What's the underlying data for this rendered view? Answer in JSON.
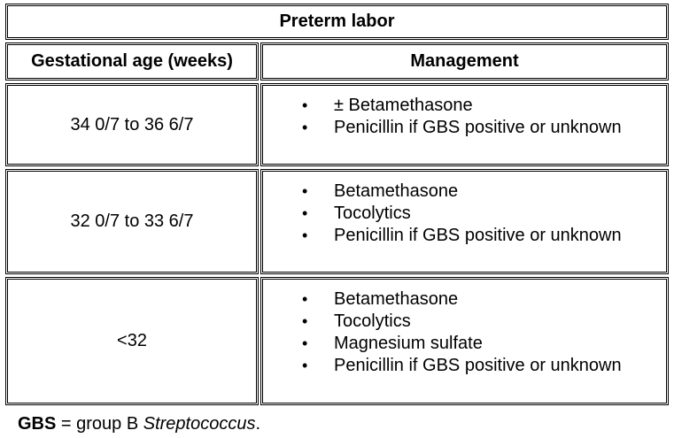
{
  "table": {
    "title": "Preterm labor",
    "headers": {
      "age": "Gestational age (weeks)",
      "management": "Management"
    },
    "rows": [
      {
        "age": "34 0/7 to 36 6/7",
        "items": [
          "± Betamethasone",
          "Penicillin if GBS positive or unknown"
        ]
      },
      {
        "age": "32 0/7 to 33 6/7",
        "items": [
          "Betamethasone",
          "Tocolytics",
          "Penicillin if GBS positive or unknown"
        ]
      },
      {
        "age": "<32",
        "items": [
          "Betamethasone",
          "Tocolytics",
          "Magnesium sulfate",
          "Penicillin if GBS positive or unknown"
        ]
      }
    ],
    "bullet_char": "•"
  },
  "footnote": {
    "abbr": "GBS",
    "text_before": " = group B ",
    "species": "Streptococcus",
    "text_after": "."
  }
}
